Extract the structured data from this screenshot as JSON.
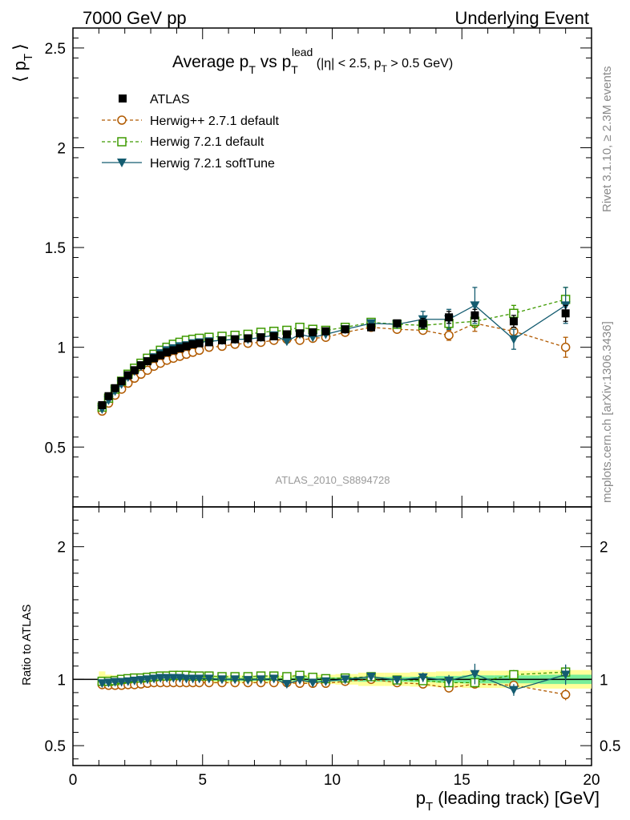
{
  "header": {
    "left": "7000 GeV pp",
    "right": "Underlying Event"
  },
  "side_labels": {
    "rivet": "Rivet 3.1.10, ≥ 2.3M events",
    "mcplots": "mcplots.cern.ch [arXiv:1306.3436]"
  },
  "watermark": "ATLAS_2010_S8894728",
  "colors": {
    "atlas": "#000000",
    "herwigpp": "#b15a00",
    "herwig721": "#3e9a00",
    "softtune": "#145c70",
    "band_yellow": "#ffff99",
    "band_green": "#77ee99"
  },
  "chart_data": [
    {
      "type": "scatter",
      "title": "Average p_T vs p_T^lead (|η| < 2.5, p_T > 0.5 GeV)",
      "title_parts": {
        "a": "Average p",
        "a_sub": "T",
        "b": " vs p",
        "b_sub": "T",
        "b_sup": "lead",
        "c": " (|η| < 2.5, p",
        "c_sub": "T",
        "d": " > 0.5 GeV)"
      },
      "ylabel": "⟨ p_T ⟩",
      "ylabel_parts": {
        "open": "⟨ p",
        "sub": "T",
        "close": "⟩"
      },
      "xlabel": "p_T (leading track) [GeV]",
      "xlim": [
        0,
        20
      ],
      "ylim": [
        0.2,
        2.6
      ],
      "yticks": [
        0.5,
        1,
        1.5,
        2,
        2.5
      ],
      "ytick_labels": [
        "0.5",
        "1",
        "1.5",
        "2",
        "2.5"
      ],
      "legend_position": "top-left",
      "x": [
        1.125,
        1.375,
        1.625,
        1.875,
        2.125,
        2.375,
        2.625,
        2.875,
        3.125,
        3.375,
        3.625,
        3.875,
        4.125,
        4.375,
        4.625,
        4.875,
        5.25,
        5.75,
        6.25,
        6.75,
        7.25,
        7.75,
        8.25,
        8.75,
        9.25,
        9.75,
        10.5,
        11.5,
        12.5,
        13.5,
        14.5,
        15.5,
        17.0,
        19.0
      ],
      "series": [
        {
          "name": "ATLAS",
          "marker": "filled-square",
          "values": [
            0.71,
            0.755,
            0.795,
            0.83,
            0.86,
            0.885,
            0.91,
            0.93,
            0.945,
            0.96,
            0.975,
            0.985,
            0.995,
            1.005,
            1.015,
            1.02,
            1.025,
            1.035,
            1.04,
            1.045,
            1.05,
            1.055,
            1.065,
            1.07,
            1.075,
            1.08,
            1.09,
            1.1,
            1.12,
            1.12,
            1.15,
            1.16,
            1.13,
            1.17
          ],
          "errors": [
            0.01,
            0.01,
            0.01,
            0.01,
            0.01,
            0.01,
            0.01,
            0.01,
            0.01,
            0.01,
            0.01,
            0.01,
            0.01,
            0.01,
            0.01,
            0.01,
            0.01,
            0.01,
            0.01,
            0.01,
            0.01,
            0.015,
            0.015,
            0.015,
            0.015,
            0.015,
            0.015,
            0.02,
            0.02,
            0.025,
            0.03,
            0.03,
            0.03,
            0.04
          ]
        },
        {
          "name": "Herwig++ 2.7.1 default",
          "marker": "open-circle",
          "line": "dashed",
          "values": [
            0.68,
            0.72,
            0.76,
            0.79,
            0.82,
            0.845,
            0.865,
            0.885,
            0.905,
            0.92,
            0.935,
            0.945,
            0.955,
            0.965,
            0.975,
            0.985,
            1.0,
            1.005,
            1.015,
            1.02,
            1.025,
            1.035,
            1.04,
            1.035,
            1.045,
            1.05,
            1.075,
            1.1,
            1.09,
            1.085,
            1.06,
            1.12,
            1.08,
            1.0
          ],
          "errors": [
            0.005,
            0.005,
            0.005,
            0.005,
            0.005,
            0.005,
            0.005,
            0.005,
            0.005,
            0.005,
            0.005,
            0.005,
            0.005,
            0.005,
            0.005,
            0.005,
            0.005,
            0.005,
            0.005,
            0.005,
            0.005,
            0.01,
            0.01,
            0.01,
            0.01,
            0.01,
            0.01,
            0.015,
            0.015,
            0.02,
            0.025,
            0.04,
            0.04,
            0.05
          ]
        },
        {
          "name": "Herwig 7.2.1 default",
          "marker": "open-square",
          "line": "dashed",
          "values": [
            0.7,
            0.745,
            0.79,
            0.83,
            0.865,
            0.895,
            0.92,
            0.945,
            0.965,
            0.985,
            1.0,
            1.015,
            1.025,
            1.035,
            1.04,
            1.045,
            1.05,
            1.055,
            1.06,
            1.065,
            1.075,
            1.08,
            1.085,
            1.1,
            1.09,
            1.085,
            1.1,
            1.125,
            1.115,
            1.11,
            1.12,
            1.13,
            1.17,
            1.24
          ],
          "errors": [
            0.005,
            0.005,
            0.005,
            0.005,
            0.005,
            0.005,
            0.005,
            0.005,
            0.005,
            0.005,
            0.005,
            0.005,
            0.005,
            0.005,
            0.005,
            0.005,
            0.005,
            0.005,
            0.005,
            0.005,
            0.005,
            0.01,
            0.01,
            0.01,
            0.01,
            0.01,
            0.01,
            0.015,
            0.015,
            0.02,
            0.025,
            0.03,
            0.04,
            0.06
          ]
        },
        {
          "name": "Herwig 7.2.1 softTune",
          "marker": "filled-triangle-down",
          "line": "solid",
          "values": [
            0.69,
            0.735,
            0.78,
            0.815,
            0.85,
            0.88,
            0.905,
            0.93,
            0.95,
            0.97,
            0.985,
            0.995,
            1.005,
            1.01,
            1.02,
            1.025,
            1.03,
            1.035,
            1.04,
            1.04,
            1.05,
            1.06,
            1.03,
            1.065,
            1.05,
            1.065,
            1.09,
            1.12,
            1.115,
            1.14,
            1.14,
            1.21,
            1.04,
            1.21
          ],
          "errors": [
            0.005,
            0.005,
            0.005,
            0.005,
            0.005,
            0.005,
            0.005,
            0.005,
            0.005,
            0.005,
            0.005,
            0.005,
            0.005,
            0.005,
            0.005,
            0.005,
            0.005,
            0.005,
            0.005,
            0.005,
            0.005,
            0.01,
            0.01,
            0.01,
            0.01,
            0.01,
            0.015,
            0.02,
            0.02,
            0.04,
            0.05,
            0.09,
            0.05,
            0.09
          ]
        }
      ]
    },
    {
      "type": "scatter",
      "ylabel": "Ratio to ATLAS",
      "xlabel": "p_T (leading track) [GeV]",
      "xlabel_parts": {
        "main": "p",
        "sub": "T",
        "rest": " (leading track) [GeV]"
      },
      "xlim": [
        0,
        20
      ],
      "ylim": [
        0.35,
        2.3
      ],
      "yticks": [
        0.5,
        1,
        2
      ],
      "ytick_labels": [
        "0.5",
        "1",
        "2"
      ],
      "xticks": [
        0,
        5,
        10,
        15,
        20
      ],
      "xtick_labels": [
        "0",
        "5",
        "10",
        "15",
        "20"
      ],
      "reference": 1,
      "band_yellow_halfwidth": [
        0.06,
        0.035,
        0.03,
        0.03,
        0.03,
        0.03,
        0.03,
        0.03,
        0.03,
        0.03,
        0.03,
        0.03,
        0.03,
        0.03,
        0.03,
        0.03,
        0.03,
        0.03,
        0.03,
        0.03,
        0.03,
        0.03,
        0.03,
        0.035,
        0.035,
        0.035,
        0.04,
        0.05,
        0.05,
        0.055,
        0.06,
        0.065,
        0.065,
        0.07
      ],
      "band_green_halfwidth": [
        0.02,
        0.015,
        0.012,
        0.012,
        0.012,
        0.012,
        0.012,
        0.012,
        0.012,
        0.012,
        0.012,
        0.012,
        0.012,
        0.012,
        0.012,
        0.012,
        0.012,
        0.012,
        0.012,
        0.012,
        0.012,
        0.012,
        0.012,
        0.015,
        0.015,
        0.015,
        0.015,
        0.018,
        0.018,
        0.02,
        0.025,
        0.03,
        0.03,
        0.035
      ],
      "series": [
        {
          "name": "Herwig++ 2.7.1 default",
          "values": [
            0.96,
            0.955,
            0.955,
            0.955,
            0.96,
            0.96,
            0.965,
            0.97,
            0.975,
            0.975,
            0.975,
            0.975,
            0.975,
            0.975,
            0.975,
            0.975,
            0.975,
            0.975,
            0.975,
            0.975,
            0.975,
            0.975,
            0.975,
            0.97,
            0.97,
            0.97,
            0.985,
            1.0,
            0.975,
            0.965,
            0.935,
            0.965,
            0.955,
            0.885
          ]
        },
        {
          "name": "Herwig 7.2.1 default",
          "values": [
            0.985,
            0.985,
            0.99,
            1.0,
            1.005,
            1.01,
            1.01,
            1.015,
            1.02,
            1.025,
            1.025,
            1.03,
            1.03,
            1.03,
            1.025,
            1.025,
            1.025,
            1.02,
            1.02,
            1.02,
            1.025,
            1.025,
            1.02,
            1.03,
            1.015,
            1.005,
            1.01,
            1.02,
            0.995,
            0.99,
            0.975,
            0.975,
            1.035,
            1.055
          ]
        },
        {
          "name": "Herwig 7.2.1 softTune",
          "values": [
            0.97,
            0.975,
            0.98,
            0.98,
            0.985,
            0.99,
            0.995,
            1.0,
            1.005,
            1.01,
            1.01,
            1.01,
            1.01,
            1.005,
            1.005,
            1.005,
            1.005,
            1.0,
            1.0,
            0.995,
            1.0,
            1.005,
            0.965,
            0.995,
            0.975,
            0.985,
            1.0,
            1.02,
            0.995,
            1.015,
            0.99,
            1.04,
            0.92,
            1.035
          ]
        }
      ]
    }
  ]
}
